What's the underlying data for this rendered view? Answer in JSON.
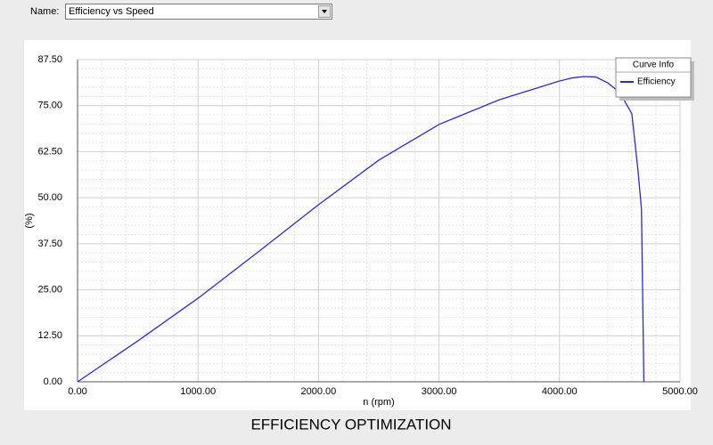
{
  "ui": {
    "name_label": "Name:",
    "selected": "Efficiency vs Speed"
  },
  "caption": "EFFICIENCY OPTIMIZATION",
  "chart_data": {
    "type": "line",
    "xlabel": "n (rpm)",
    "ylabel": "(%)",
    "legend_title": "Curve Info",
    "legend": "top-right",
    "grid": true,
    "x": [
      0,
      500,
      1000,
      1500,
      2000,
      2500,
      3000,
      3500,
      4000,
      4100,
      4200,
      4300,
      4400,
      4500,
      4600,
      4650,
      4680,
      4700
    ],
    "series": [
      {
        "name": "Efficiency",
        "color": "#2a2ad0",
        "values": [
          0,
          11.1,
          22.7,
          35.3,
          48.1,
          60.2,
          69.9,
          76.6,
          81.7,
          82.5,
          82.9,
          82.8,
          81.2,
          78.6,
          72.8,
          57.8,
          46.9,
          0
        ]
      }
    ],
    "xlim": [
      0,
      5000
    ],
    "xticks": [
      {
        "value": 0,
        "label": "0.00"
      },
      {
        "value": 1000,
        "label": "1000.00"
      },
      {
        "value": 2000,
        "label": "2000.00"
      },
      {
        "value": 3000,
        "label": "3000.00"
      },
      {
        "value": 4000,
        "label": "4000.00"
      },
      {
        "value": 5000,
        "label": "5000.00"
      }
    ],
    "ylim": [
      0,
      87.5
    ],
    "yticks": [
      {
        "value": 0,
        "label": "0.00"
      },
      {
        "value": 12.5,
        "label": "12.50"
      },
      {
        "value": 25,
        "label": "25.00"
      },
      {
        "value": 37.5,
        "label": "37.50"
      },
      {
        "value": 50,
        "label": "50.00"
      },
      {
        "value": 62.5,
        "label": "62.50"
      },
      {
        "value": 75,
        "label": "75.00"
      },
      {
        "value": 87.5,
        "label": "87.50"
      }
    ]
  }
}
